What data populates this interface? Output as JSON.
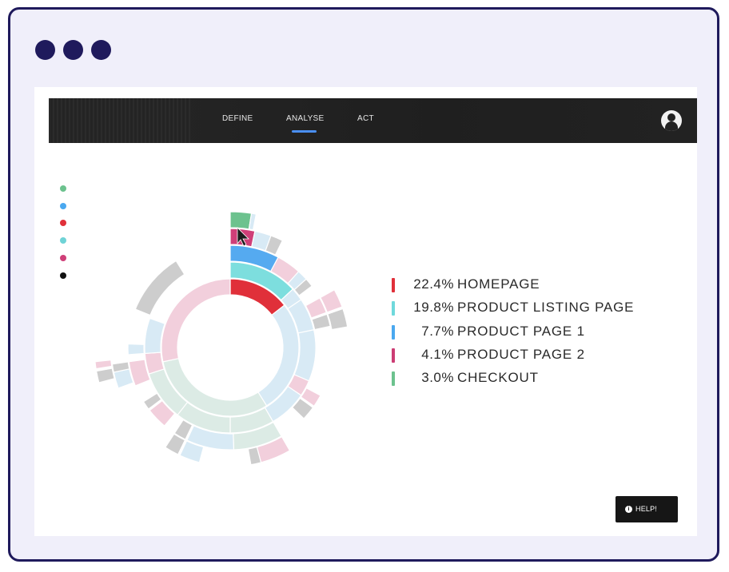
{
  "nav": {
    "tabs": [
      {
        "label": "DEFINE"
      },
      {
        "label": "ANALYSE"
      },
      {
        "label": "ACT"
      }
    ],
    "active_tab": "ANALYSE",
    "accent": "#4a8ff2"
  },
  "filter_dots": [
    {
      "color": "#6cc28e"
    },
    {
      "color": "#4aa8ef"
    },
    {
      "color": "#e0303a"
    },
    {
      "color": "#6fd3d6"
    },
    {
      "color": "#cf3f78"
    },
    {
      "color": "#111111"
    }
  ],
  "legend": [
    {
      "value": "22.4%",
      "label": "HOMEPAGE",
      "color": "#e0303a"
    },
    {
      "value": "19.8%",
      "label": "PRODUCT LISTING PAGE",
      "color": "#6fd9dc"
    },
    {
      "value": "7.7%",
      "label": "PRODUCT PAGE 1",
      "color": "#4aa8ef"
    },
    {
      "value": "4.1%",
      "label": "PRODUCT PAGE 2",
      "color": "#cc3d74"
    },
    {
      "value": "3.0%",
      "label": "CHECKOUT",
      "color": "#6cc28e"
    }
  ],
  "help": {
    "label": "HELP!",
    "icon": "info-icon"
  }
}
